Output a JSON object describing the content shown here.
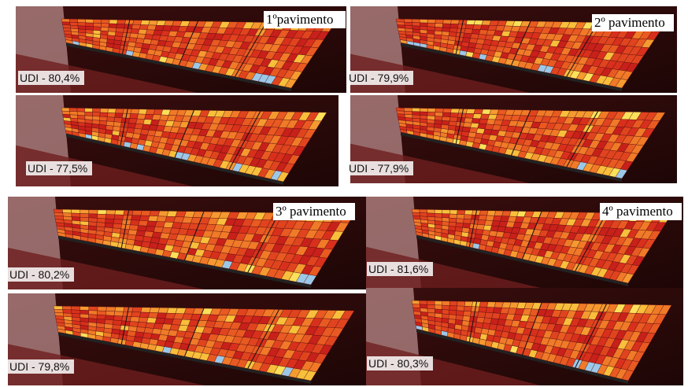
{
  "floors": [
    {
      "title": "1ºpavimento",
      "views": [
        "UDI - 80,4%",
        "UDI - 77,5%"
      ]
    },
    {
      "title": "2º pavimento",
      "views": [
        "UDI - 79,9%",
        "UDI - 77,9%"
      ]
    },
    {
      "title": "3º pavimento",
      "views": [
        "UDI - 80,2%",
        "UDI - 79,8%"
      ]
    },
    {
      "title": "4º pavimento",
      "views": [
        "UDI - 81,6%",
        "UDI - 80,3%"
      ]
    }
  ]
}
